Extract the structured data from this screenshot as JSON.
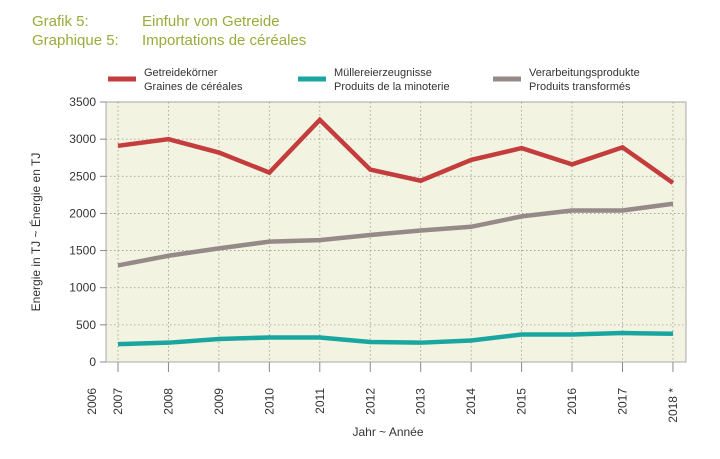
{
  "header": {
    "de_label": "Grafik 5:",
    "de_title": "Einfuhr von Getreide",
    "fr_label": "Graphique 5:",
    "fr_title": "Importations de céréales"
  },
  "chart_data": {
    "type": "line",
    "xlabel": "Jahr  ~  Année",
    "ylabel": "Energie in TJ   ~   Énergie en TJ",
    "ylim": [
      0,
      3500
    ],
    "yticks": [
      0,
      500,
      1000,
      1500,
      2000,
      2500,
      3000,
      3500
    ],
    "x_tick_labels": [
      "2006",
      "2007",
      "2008",
      "2009",
      "2010",
      "2011",
      "2012",
      "2013",
      "2014",
      "2015",
      "2016",
      "2017",
      "2018 *"
    ],
    "x": [
      2007,
      2008,
      2009,
      2010,
      2011,
      2012,
      2013,
      2014,
      2015,
      2016,
      2017,
      2018
    ],
    "grid": true,
    "legend_position": "top",
    "series": [
      {
        "name": "Getreidekörner",
        "name_fr": "Graines de céréales",
        "color": "#c43d3d",
        "values": [
          2910,
          3000,
          2820,
          2550,
          3260,
          2590,
          2440,
          2720,
          2880,
          2660,
          2890,
          2410
        ]
      },
      {
        "name": "Müllereierzeugnisse",
        "name_fr": "Produits de la minoterie",
        "color": "#1aa6a0",
        "values": [
          240,
          260,
          310,
          330,
          330,
          270,
          260,
          290,
          370,
          370,
          390,
          380
        ]
      },
      {
        "name": "Verarbeitungsprodukte",
        "name_fr": "Produits transformés",
        "color": "#958a87",
        "values": [
          1300,
          1430,
          1530,
          1620,
          1640,
          1710,
          1770,
          1820,
          1960,
          2040,
          2040,
          2130
        ]
      }
    ]
  }
}
